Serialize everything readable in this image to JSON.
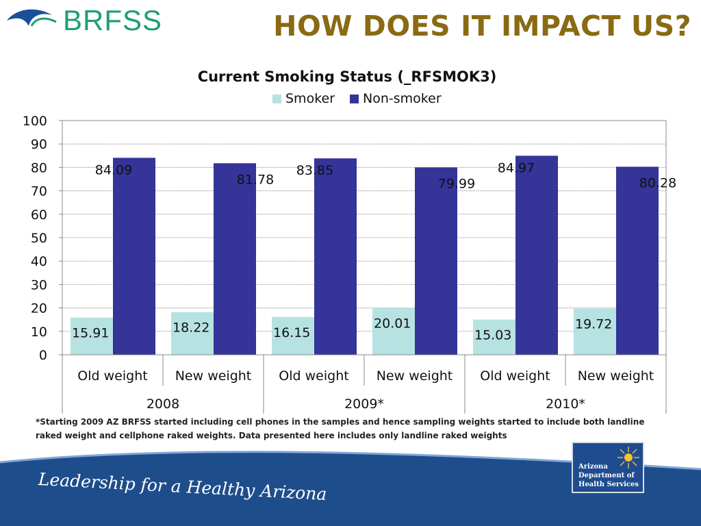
{
  "brand": {
    "logo_text": "BRFSS"
  },
  "slide": {
    "title": "HOW DOES IT IMPACT US?"
  },
  "chart_data": {
    "type": "bar",
    "title": "Current Smoking Status (_RFSMOK3)",
    "groups": [
      "2008",
      "2009*",
      "2010*"
    ],
    "categories": [
      "Old weight",
      "New weight",
      "Old weight",
      "New weight",
      "Old weight",
      "New weight"
    ],
    "series": [
      {
        "name": "Smoker",
        "color": "#b7e2e2",
        "values": [
          15.91,
          18.22,
          16.15,
          20.01,
          15.03,
          19.72
        ]
      },
      {
        "name": "Non-smoker",
        "color": "#343499",
        "values": [
          84.09,
          81.78,
          83.85,
          79.99,
          84.97,
          80.28
        ]
      }
    ],
    "yticks": [
      "0",
      "10",
      "20",
      "30",
      "40",
      "50",
      "60",
      "70",
      "80",
      "90",
      "100"
    ],
    "ylim": [
      0,
      100
    ],
    "grid": true,
    "legend_position": "top"
  },
  "footnote": "*Starting 2009 AZ BRFSS started including cell phones in the samples and hence sampling weights started to include both landline raked weight and cellphone raked weights. Data presented here includes only landline raked weights",
  "banner": {
    "tagline": "Leadership for a Healthy Arizona"
  },
  "agency": {
    "line1": "Arizona",
    "line2": "Department of",
    "line3": "Health Services"
  },
  "colors": {
    "title": "#8a6a12",
    "brand": "#1f9d74",
    "banner": "#1e4d8c"
  }
}
